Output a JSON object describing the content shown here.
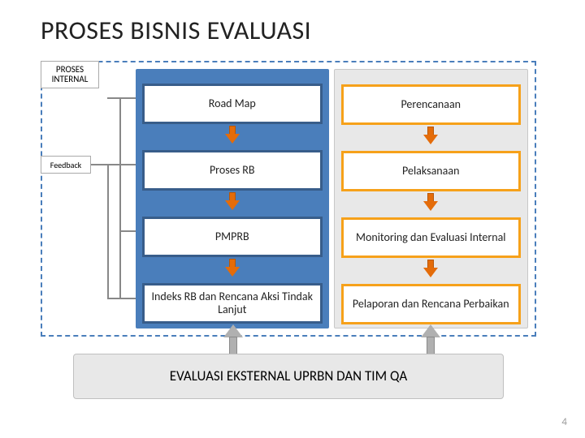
{
  "title": "PROSES BISNIS EVALUASI",
  "frame": {
    "border_color": "#4a7ebb",
    "label_internal": "PROSES INTERNAL",
    "label_feedback": "Feedback"
  },
  "panel_left": {
    "bg": "#4a7ebb",
    "node_border": "#385d8a",
    "nodes": [
      "Road Map",
      "Proses RB",
      "PMPRB",
      "Indeks RB dan Rencana Aksi Tindak Lanjut"
    ]
  },
  "panel_right": {
    "bg": "#e8e8e8",
    "node_border": "#f6a11a",
    "nodes": [
      "Perencanaan",
      "Pelaksanaan",
      "Monitoring dan Evaluasi Internal",
      "Pelaporan dan Rencana Perbaikan"
    ]
  },
  "arrow_down": {
    "fill": "#e46c0a",
    "border": "#b85708"
  },
  "arrow_up_big": {
    "fill": "#b0b0b0",
    "border": "#8a8a8a"
  },
  "feedback_line_color": "#888888",
  "bottom_box": "EVALUASI EKSTERNAL UPRBN DAN TIM QA",
  "page_number": "4",
  "layout": {
    "node_tops": [
      18,
      100,
      182,
      264
    ],
    "arrow_tops": [
      70,
      152,
      234
    ]
  }
}
